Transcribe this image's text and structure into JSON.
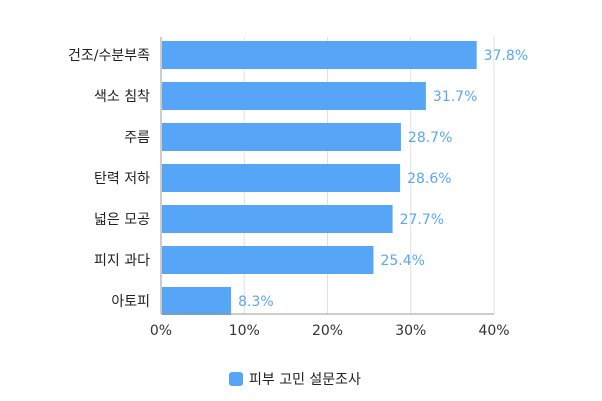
{
  "chart_data": {
    "type": "bar",
    "orientation": "horizontal",
    "title": "",
    "xlabel": "",
    "ylabel": "",
    "categories": [
      "건조/수분부족",
      "색소 침착",
      "주름",
      "탄력 저하",
      "넓은 모공",
      "피지 과다",
      "아토피"
    ],
    "series": [
      {
        "name": "피부 고민 설문조사",
        "values": [
          37.8,
          31.7,
          28.7,
          28.6,
          27.7,
          25.4,
          8.3
        ],
        "color": "#57a5f7"
      }
    ],
    "value_labels": [
      "37.8%",
      "31.7%",
      "28.7%",
      "28.6%",
      "27.7%",
      "25.4%",
      "8.3%"
    ],
    "xlim": [
      0,
      40
    ],
    "x_ticks": [
      0,
      10,
      20,
      30,
      40
    ],
    "x_tick_labels": [
      "0%",
      "10%",
      "20%",
      "30%",
      "40%"
    ],
    "grid": true,
    "legend_position": "bottom",
    "colors": {
      "bar": "#57a5f7",
      "value_label": "#5aa8f5",
      "grid": "#e0e0e0",
      "axis": "#999999"
    }
  },
  "legend": {
    "label": "피부 고민 설문조사"
  }
}
